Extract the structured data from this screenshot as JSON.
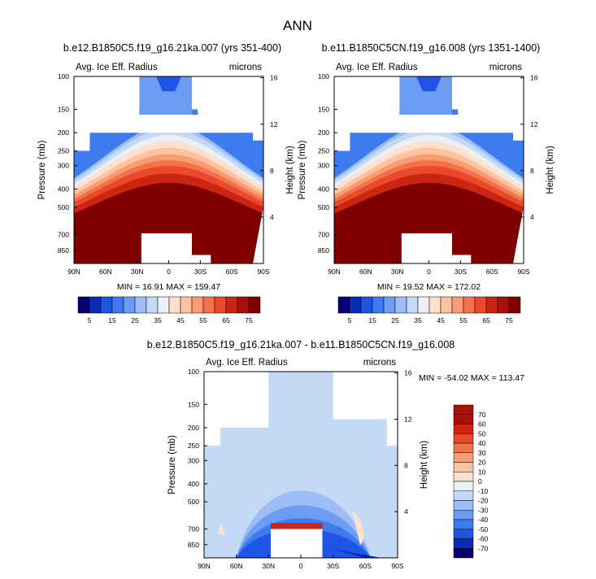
{
  "figure": {
    "title": "ANN",
    "variable_label": "Avg. Ice Eff. Radius",
    "units_label": "microns",
    "ylabel_left": "Pressure (mb)",
    "ylabel_right": "Height (km)"
  },
  "axes": {
    "x_ticks": [
      "90N",
      "60N",
      "30N",
      "0",
      "30S",
      "60S",
      "90S"
    ],
    "x_values": [
      90,
      60,
      30,
      0,
      -30,
      -60,
      -90
    ],
    "pressure_ticks": [
      "100",
      "150",
      "200",
      "250",
      "300",
      "400",
      "500",
      "700",
      "850"
    ],
    "pressure_values": [
      100,
      150,
      200,
      250,
      300,
      400,
      500,
      700,
      850
    ],
    "height_ticks": [
      "4",
      "8",
      "12",
      "16"
    ],
    "height_values": [
      4,
      8,
      12,
      16
    ],
    "plim": [
      100,
      1000
    ]
  },
  "chart_data": [
    {
      "type": "heatmap",
      "title": "b.e12.B1850C5.f19_g16.21ka.007 (yrs 351-400)",
      "xlabel": "",
      "ylabel": "Pressure (mb)",
      "min_label": "MIN = 16.91",
      "max_label": "MAX = 159.47",
      "min": 16.91,
      "max": 159.47,
      "tropo": [
        95,
        95,
        105,
        112,
        125,
        145,
        150,
        150,
        150,
        150,
        150,
        150,
        148,
        135,
        115,
        105,
        100,
        95
      ],
      "inner": [
        {
          "lat": -60,
          "y": 690
        },
        {
          "lat": 24,
          "y": 900
        },
        {
          "lat": 22,
          "y": 900
        },
        {
          "lat": 20,
          "y": 699
        },
        {
          "lat": 0,
          "y": 700
        },
        {
          "lat": -24,
          "y": 698
        },
        {
          "lat": -25,
          "y": 690
        }
      ],
      "diagonal_outline": [
        {
          "lat": 27,
          "y": 690
        },
        {
          "lat": 25,
          "y": 1000
        },
        {
          "lat": -45,
          "y": 1000
        },
        {
          "lat": -43,
          "y": 690
        }
      ]
    },
    {
      "type": "heatmap",
      "title": "b.e11.B1850C5CN.f19_g16.008 (yrs 1351-1400)",
      "xlabel": "",
      "ylabel": "Pressure (mb)",
      "min_label": "MIN = 19.52",
      "max_label": "MAX = 172.02",
      "min": 19.52,
      "max": 172.02,
      "tropo": [
        90,
        90,
        100,
        108,
        120,
        140,
        150,
        150,
        150,
        150,
        150,
        150,
        148,
        135,
        112,
        102,
        98,
        92
      ],
      "inner": [
        {
          "lat": 25,
          "y": 690
        },
        {
          "lat": 24,
          "y": 900
        },
        {
          "lat": -20,
          "y": 900
        },
        {
          "lat": -22,
          "y": 690
        }
      ],
      "diagonal_outline": [
        {
          "lat": 26,
          "y": 690
        },
        {
          "lat": 24,
          "y": 1000
        },
        {
          "lat": -45,
          "y": 1000
        },
        {
          "lat": -43,
          "y": 690
        }
      ]
    },
    {
      "type": "heatmap",
      "title": "b.e12.B1850C5.f19_g16.21ka.007 - b.e11.B1850C5CN.f19_g16.008",
      "xlabel": "",
      "ylabel": "Pressure (mb)",
      "min_label": "MIN = -54.02",
      "max_label": "MAX = 113.47",
      "min": -54.02,
      "max": 113.47
    }
  ],
  "colorbar_abs": {
    "labels": [
      "5",
      "15",
      "25",
      "35",
      "45",
      "55",
      "65",
      "75"
    ],
    "colors": [
      "#08006e",
      "#0a2bb8",
      "#1e55e6",
      "#3f7bf0",
      "#6c9cf3",
      "#9cbdf5",
      "#c4d9f6",
      "#e9f0f7",
      "#fde1cc",
      "#fcc3a3",
      "#f99c74",
      "#f5714b",
      "#ea4a2b",
      "#cc2514",
      "#a8110b",
      "#800000"
    ]
  },
  "colorbar_diff": {
    "labels": [
      "70",
      "60",
      "50",
      "40",
      "30",
      "20",
      "10",
      "0",
      "-10",
      "-20",
      "-30",
      "-40",
      "-50",
      "-60",
      "-70"
    ],
    "colors": [
      "#a8110b",
      "#cc2514",
      "#ea4a2b",
      "#f5714b",
      "#f99c74",
      "#fcc3a3",
      "#fde1cc",
      "#e9f0f7",
      "#c4d9f6",
      "#9cbdf5",
      "#6c9cf3",
      "#3f7bf0",
      "#1e55e6",
      "#0a2bb8",
      "#08006e"
    ]
  }
}
